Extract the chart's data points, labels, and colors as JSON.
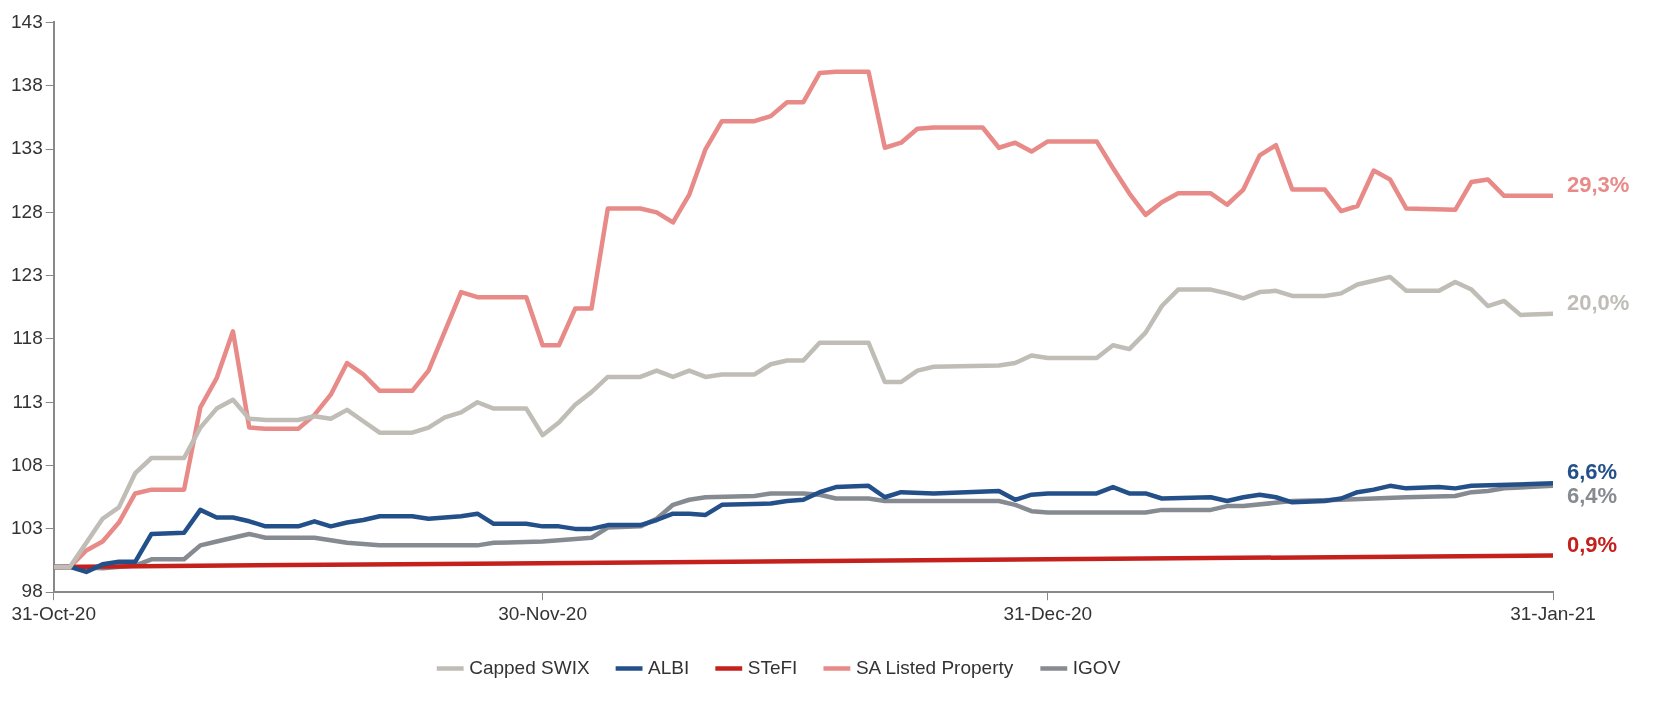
{
  "chart_data": {
    "type": "line",
    "ylim": [
      98,
      143
    ],
    "yticks": [
      98,
      103,
      108,
      113,
      118,
      123,
      128,
      133,
      138,
      143
    ],
    "xlim": [
      "2020-10-31",
      "2021-01-31"
    ],
    "xticks": [
      {
        "value": "2020-10-31",
        "label": "31-Oct-20"
      },
      {
        "value": "2020-11-30",
        "label": "30-Nov-20"
      },
      {
        "value": "2020-12-31",
        "label": "31-Dec-20"
      },
      {
        "value": "2021-01-31",
        "label": "31-Jan-21"
      }
    ],
    "grid": false,
    "legend": "bottom",
    "marker": "none",
    "line_style": "solid",
    "series": [
      {
        "name": "Capped SWIX",
        "color": "#bfbdb6",
        "x": [
          "2020-10-31",
          "2020-11-01",
          "2020-11-03",
          "2020-11-04",
          "2020-11-05",
          "2020-11-06",
          "2020-11-08",
          "2020-11-09",
          "2020-11-10",
          "2020-11-11",
          "2020-11-12",
          "2020-11-13",
          "2020-11-15",
          "2020-11-16",
          "2020-11-17",
          "2020-11-18",
          "2020-11-19",
          "2020-11-20",
          "2020-11-22",
          "2020-11-23",
          "2020-11-24",
          "2020-11-25",
          "2020-11-26",
          "2020-11-27",
          "2020-11-29",
          "2020-11-30",
          "2020-12-01",
          "2020-12-02",
          "2020-12-03",
          "2020-12-04",
          "2020-12-06",
          "2020-12-07",
          "2020-12-08",
          "2020-12-09",
          "2020-12-10",
          "2020-12-11",
          "2020-12-13",
          "2020-12-14",
          "2020-12-15",
          "2020-12-16",
          "2020-12-17",
          "2020-12-20",
          "2020-12-21",
          "2020-12-22",
          "2020-12-23",
          "2020-12-24",
          "2020-12-28",
          "2020-12-29",
          "2020-12-30",
          "2020-12-31",
          "2021-01-03",
          "2021-01-04",
          "2021-01-05",
          "2021-01-06",
          "2021-01-07",
          "2021-01-08",
          "2021-01-10",
          "2021-01-11",
          "2021-01-12",
          "2021-01-13",
          "2021-01-14",
          "2021-01-15",
          "2021-01-17",
          "2021-01-18",
          "2021-01-19",
          "2021-01-20",
          "2021-01-21",
          "2021-01-22",
          "2021-01-24",
          "2021-01-25",
          "2021-01-26",
          "2021-01-27",
          "2021-01-28",
          "2021-01-29",
          "2021-01-31"
        ],
        "values": [
          100,
          100,
          103.8,
          104.7,
          107.4,
          108.6,
          108.6,
          111.0,
          112.5,
          113.2,
          111.7,
          111.6,
          111.6,
          111.9,
          111.7,
          112.4,
          111.5,
          110.6,
          110.6,
          111.0,
          111.8,
          112.2,
          113.0,
          112.5,
          112.5,
          110.4,
          111.4,
          112.8,
          113.8,
          115.0,
          115.0,
          115.5,
          115.0,
          115.5,
          115.0,
          115.2,
          115.2,
          116.0,
          116.3,
          116.3,
          117.7,
          117.7,
          114.6,
          114.6,
          115.5,
          115.8,
          115.9,
          116.1,
          116.7,
          116.5,
          116.5,
          117.5,
          117.2,
          118.5,
          120.6,
          121.9,
          121.9,
          121.6,
          121.2,
          121.7,
          121.8,
          121.4,
          121.4,
          121.6,
          122.3,
          122.6,
          122.9,
          121.8,
          121.8,
          122.5,
          121.9,
          120.6,
          121.0,
          119.9,
          120.0
        ]
      },
      {
        "name": "ALBI",
        "color": "#24508a",
        "x": [
          "2020-10-31",
          "2020-11-01",
          "2020-11-02",
          "2020-11-03",
          "2020-11-04",
          "2020-11-05",
          "2020-11-06",
          "2020-11-08",
          "2020-11-09",
          "2020-11-10",
          "2020-11-11",
          "2020-11-12",
          "2020-11-13",
          "2020-11-15",
          "2020-11-16",
          "2020-11-17",
          "2020-11-18",
          "2020-11-19",
          "2020-11-20",
          "2020-11-22",
          "2020-11-23",
          "2020-11-24",
          "2020-11-25",
          "2020-11-26",
          "2020-11-27",
          "2020-11-29",
          "2020-11-30",
          "2020-12-01",
          "2020-12-02",
          "2020-12-03",
          "2020-12-04",
          "2020-12-06",
          "2020-12-07",
          "2020-12-08",
          "2020-12-09",
          "2020-12-10",
          "2020-12-11",
          "2020-12-14",
          "2020-12-15",
          "2020-12-16",
          "2020-12-17",
          "2020-12-18",
          "2020-12-20",
          "2020-12-21",
          "2020-12-22",
          "2020-12-24",
          "2020-12-28",
          "2020-12-29",
          "2020-12-30",
          "2020-12-31",
          "2021-01-03",
          "2021-01-04",
          "2021-01-05",
          "2021-01-06",
          "2021-01-07",
          "2021-01-10",
          "2021-01-11",
          "2021-01-12",
          "2021-01-13",
          "2021-01-14",
          "2021-01-15",
          "2021-01-17",
          "2021-01-18",
          "2021-01-19",
          "2021-01-20",
          "2021-01-21",
          "2021-01-22",
          "2021-01-24",
          "2021-01-25",
          "2021-01-26",
          "2021-01-31"
        ],
        "values": [
          100,
          100,
          99.6,
          100.2,
          100.4,
          100.4,
          102.6,
          102.7,
          104.5,
          103.9,
          103.9,
          103.6,
          103.2,
          103.2,
          103.6,
          103.2,
          103.5,
          103.7,
          104.0,
          104.0,
          103.8,
          103.9,
          104.0,
          104.2,
          103.4,
          103.4,
          103.2,
          103.2,
          103.0,
          103.0,
          103.3,
          103.3,
          103.7,
          104.2,
          104.2,
          104.1,
          104.9,
          105.0,
          105.2,
          105.3,
          105.9,
          106.3,
          106.4,
          105.5,
          105.9,
          105.8,
          106.0,
          105.3,
          105.7,
          105.8,
          105.8,
          106.3,
          105.8,
          105.8,
          105.4,
          105.5,
          105.2,
          105.5,
          105.7,
          105.5,
          105.1,
          105.2,
          105.4,
          105.9,
          106.1,
          106.4,
          106.2,
          106.3,
          106.2,
          106.4,
          106.6
        ]
      },
      {
        "name": "STeFI",
        "color": "#c4201c",
        "x": [
          "2020-10-31",
          "2021-01-31"
        ],
        "values": [
          100,
          100.9
        ]
      },
      {
        "name": "SA Listed Property",
        "color": "#e88a87",
        "x": [
          "2020-10-31",
          "2020-11-01",
          "2020-11-02",
          "2020-11-03",
          "2020-11-04",
          "2020-11-05",
          "2020-11-06",
          "2020-11-08",
          "2020-11-09",
          "2020-11-10",
          "2020-11-11",
          "2020-11-12",
          "2020-11-13",
          "2020-11-15",
          "2020-11-16",
          "2020-11-17",
          "2020-11-18",
          "2020-11-19",
          "2020-11-20",
          "2020-11-22",
          "2020-11-23",
          "2020-11-24",
          "2020-11-25",
          "2020-11-26",
          "2020-11-29",
          "2020-11-30",
          "2020-12-01",
          "2020-12-02",
          "2020-12-03",
          "2020-12-04",
          "2020-12-06",
          "2020-12-07",
          "2020-12-08",
          "2020-12-09",
          "2020-12-10",
          "2020-12-11",
          "2020-12-13",
          "2020-12-14",
          "2020-12-15",
          "2020-12-16",
          "2020-12-17",
          "2020-12-18",
          "2020-12-20",
          "2020-12-21",
          "2020-12-22",
          "2020-12-23",
          "2020-12-24",
          "2020-12-27",
          "2020-12-28",
          "2020-12-29",
          "2020-12-30",
          "2020-12-31",
          "2021-01-03",
          "2021-01-04",
          "2021-01-05",
          "2021-01-06",
          "2021-01-07",
          "2021-01-08",
          "2021-01-10",
          "2021-01-11",
          "2021-01-12",
          "2021-01-13",
          "2021-01-14",
          "2021-01-15",
          "2021-01-17",
          "2021-01-18",
          "2021-01-19",
          "2021-01-20",
          "2021-01-21",
          "2021-01-22",
          "2021-01-25",
          "2021-01-26",
          "2021-01-27",
          "2021-01-28",
          "2021-01-29",
          "2021-01-31"
        ],
        "values": [
          100,
          100,
          101.3,
          102.0,
          103.5,
          105.8,
          106.1,
          106.1,
          112.6,
          114.9,
          118.6,
          111.0,
          110.9,
          110.9,
          112.0,
          113.6,
          116.1,
          115.2,
          113.9,
          113.9,
          115.5,
          118.6,
          121.7,
          121.3,
          121.3,
          117.5,
          117.5,
          120.4,
          120.4,
          128.3,
          128.3,
          128.0,
          127.2,
          129.4,
          133.0,
          135.2,
          135.2,
          135.6,
          136.7,
          136.7,
          139.0,
          139.1,
          139.1,
          133.1,
          133.5,
          134.6,
          134.7,
          134.7,
          133.1,
          133.5,
          132.8,
          133.6,
          133.6,
          131.5,
          129.5,
          127.8,
          128.8,
          129.5,
          129.5,
          128.6,
          129.8,
          132.5,
          133.3,
          129.8,
          129.8,
          128.1,
          128.5,
          131.3,
          130.6,
          128.3,
          128.2,
          130.4,
          130.6,
          129.3,
          129.3,
          129.3
        ]
      },
      {
        "name": "IGOV",
        "color": "#868a91",
        "x": [
          "2020-10-31",
          "2020-11-01",
          "2020-11-03",
          "2020-11-05",
          "2020-11-06",
          "2020-11-08",
          "2020-11-09",
          "2020-11-10",
          "2020-11-11",
          "2020-11-12",
          "2020-11-13",
          "2020-11-16",
          "2020-11-17",
          "2020-11-18",
          "2020-11-19",
          "2020-11-20",
          "2020-11-23",
          "2020-11-25",
          "2020-11-26",
          "2020-11-27",
          "2020-11-30",
          "2020-12-03",
          "2020-12-04",
          "2020-12-06",
          "2020-12-07",
          "2020-12-08",
          "2020-12-09",
          "2020-12-10",
          "2020-12-13",
          "2020-12-14",
          "2020-12-16",
          "2020-12-17",
          "2020-12-18",
          "2020-12-20",
          "2020-12-21",
          "2020-12-28",
          "2020-12-29",
          "2020-12-30",
          "2020-12-31",
          "2021-01-03",
          "2021-01-06",
          "2021-01-07",
          "2021-01-10",
          "2021-01-11",
          "2021-01-12",
          "2021-01-15",
          "2021-01-18",
          "2021-01-22",
          "2021-01-25",
          "2021-01-26",
          "2021-01-27",
          "2021-01-28",
          "2021-01-31"
        ],
        "values": [
          100,
          100,
          99.9,
          100.1,
          100.6,
          100.6,
          101.7,
          102.0,
          102.3,
          102.6,
          102.3,
          102.3,
          102.1,
          101.9,
          101.8,
          101.7,
          101.7,
          101.7,
          101.7,
          101.9,
          102.0,
          102.3,
          103.1,
          103.2,
          103.8,
          104.9,
          105.3,
          105.5,
          105.6,
          105.8,
          105.8,
          105.7,
          105.4,
          105.4,
          105.2,
          105.2,
          104.9,
          104.4,
          104.3,
          104.3,
          104.3,
          104.5,
          104.5,
          104.8,
          104.8,
          105.2,
          105.3,
          105.5,
          105.6,
          105.9,
          106.0,
          106.2,
          106.4
        ]
      }
    ],
    "annotations": [
      {
        "text": "29,3%",
        "x": "2021-01-31",
        "y": 129.3
      },
      {
        "text": "20,0%",
        "x": "2021-01-31",
        "y": 120.0
      },
      {
        "text": "6,6%",
        "x": "2021-01-31",
        "y": 106.6
      },
      {
        "text": "6,4%",
        "x": "2021-01-31",
        "y": 106.4
      },
      {
        "text": "0,9%",
        "x": "2021-01-31",
        "y": 100.9
      }
    ]
  }
}
